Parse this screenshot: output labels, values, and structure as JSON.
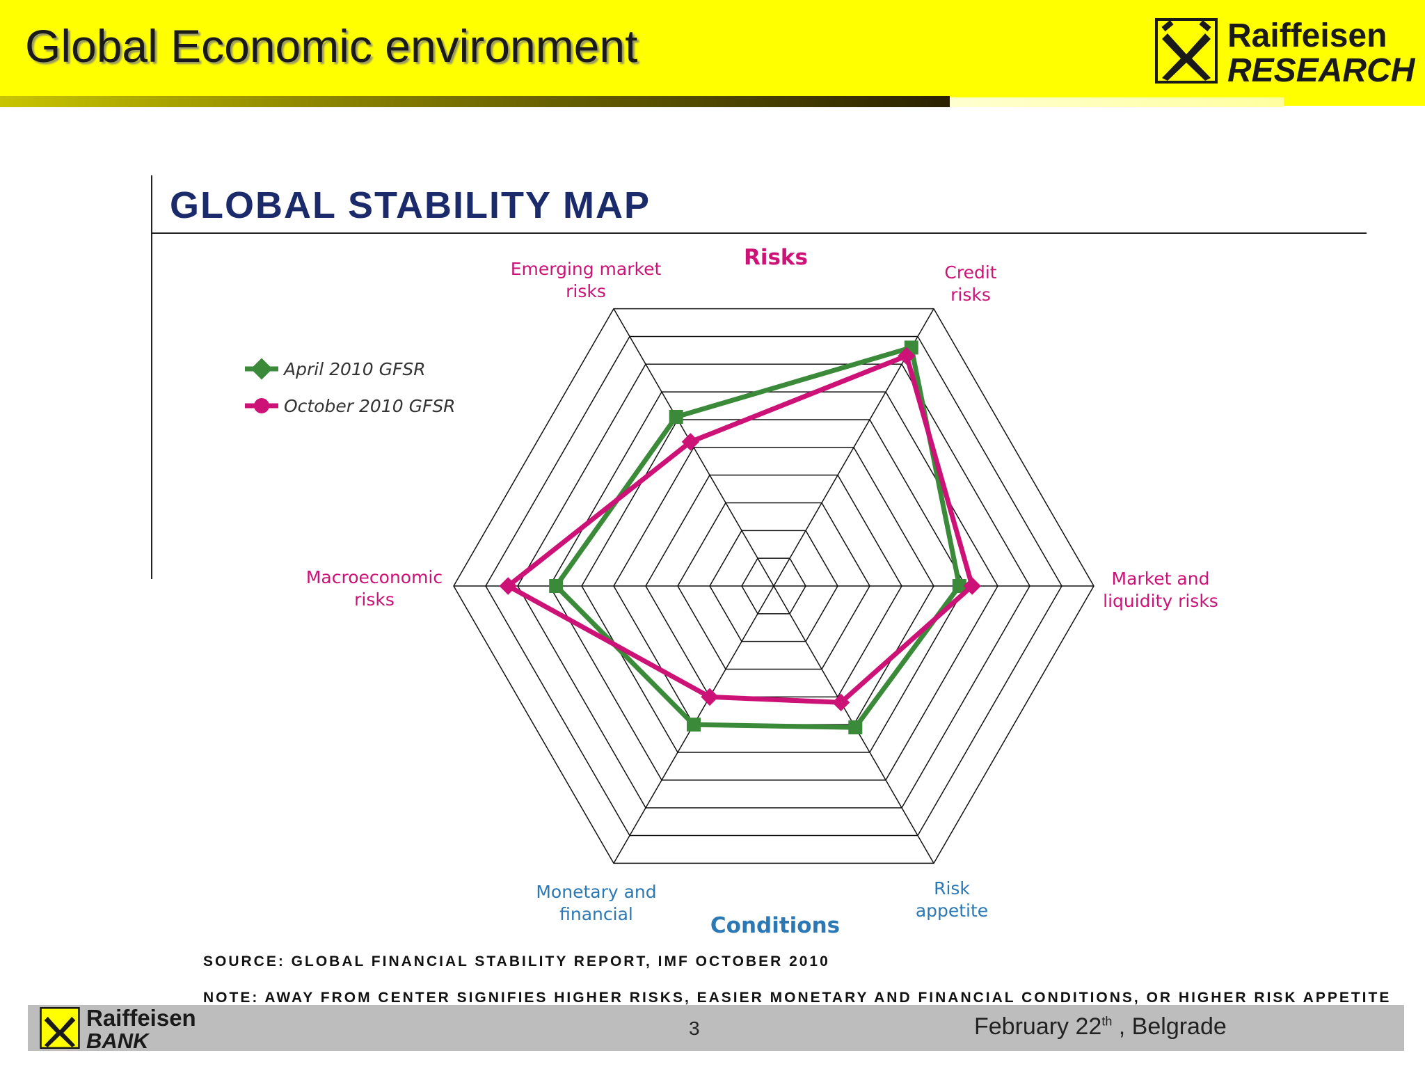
{
  "header": {
    "title": "Global Economic environment",
    "brand_name": "Raiffeisen",
    "brand_sub": "RESEARCH"
  },
  "chart": {
    "heading": "GLOBAL STABILITY MAP"
  },
  "chart_data": {
    "type": "radar",
    "axes": [
      "Credit risks",
      "Market and liquidity risks",
      "Risk appetite",
      "Monetary and financial",
      "Macroeconomic risks",
      "Emerging market risks"
    ],
    "axis_groups": {
      "top": "Risks",
      "bottom": "Conditions"
    },
    "rings": 10,
    "series": [
      {
        "name": "April 2010 GFSR",
        "color": "#3a8a3a",
        "values": [
          8.6,
          5.8,
          5.1,
          5.0,
          6.8,
          6.1
        ]
      },
      {
        "name": "October 2010 GFSR",
        "color": "#cc1277",
        "values": [
          8.3,
          6.2,
          4.2,
          4.0,
          8.3,
          5.2
        ]
      }
    ]
  },
  "notes": {
    "source": "SOURCE: GLOBAL FINANCIAL STABILITY REPORT, IMF OCTOBER 2010",
    "note": "NOTE: AWAY FROM CENTER SIGNIFIES HIGHER RISKS, EASIER MONETARY AND FINANCIAL CONDITIONS, OR HIGHER RISK APPETITE"
  },
  "footer": {
    "brand_name": "Raiffeisen",
    "brand_sub": "BANK",
    "page_number": "3",
    "date_main": "February 22",
    "date_sup": "th",
    "date_place": " , Belgrade"
  }
}
